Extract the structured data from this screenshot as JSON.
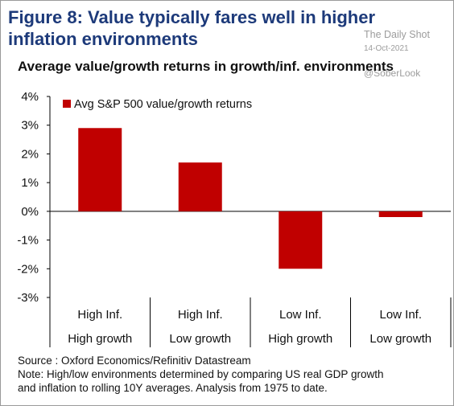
{
  "header": {
    "figure_title_line1": "Figure 8: Value typically fares well in higher",
    "figure_title_line2": "inflation environments",
    "watermark_name": "The Daily Shot",
    "watermark_date": "14-Oct-2021",
    "watermark_handle": "@SoberLook"
  },
  "chart_data": {
    "type": "bar",
    "title": "Average value/growth returns in growth/inf. environments",
    "categories": [
      [
        "High Inf.",
        "High growth"
      ],
      [
        "High Inf.",
        "Low growth"
      ],
      [
        "Low Inf.",
        "High growth"
      ],
      [
        "Low Inf.",
        "Low growth"
      ]
    ],
    "series": [
      {
        "name": "Avg S&P 500 value/growth returns",
        "values": [
          2.9,
          1.7,
          -2.0,
          -0.2
        ],
        "color": "#c00000"
      }
    ],
    "y_ticks": [
      "4%",
      "3%",
      "2%",
      "1%",
      "0%",
      "-1%",
      "-2%",
      "-3%"
    ],
    "ylim": [
      -3,
      4
    ],
    "grid": false,
    "legend_position": "top-left"
  },
  "footer": {
    "source": "Source : Oxford Economics/Refinitiv Datastream",
    "note_line1": "Note: High/low environments determined by comparing US real GDP growth",
    "note_line2": "and inflation to rolling 10Y averages. Analysis from 1975 to date."
  }
}
